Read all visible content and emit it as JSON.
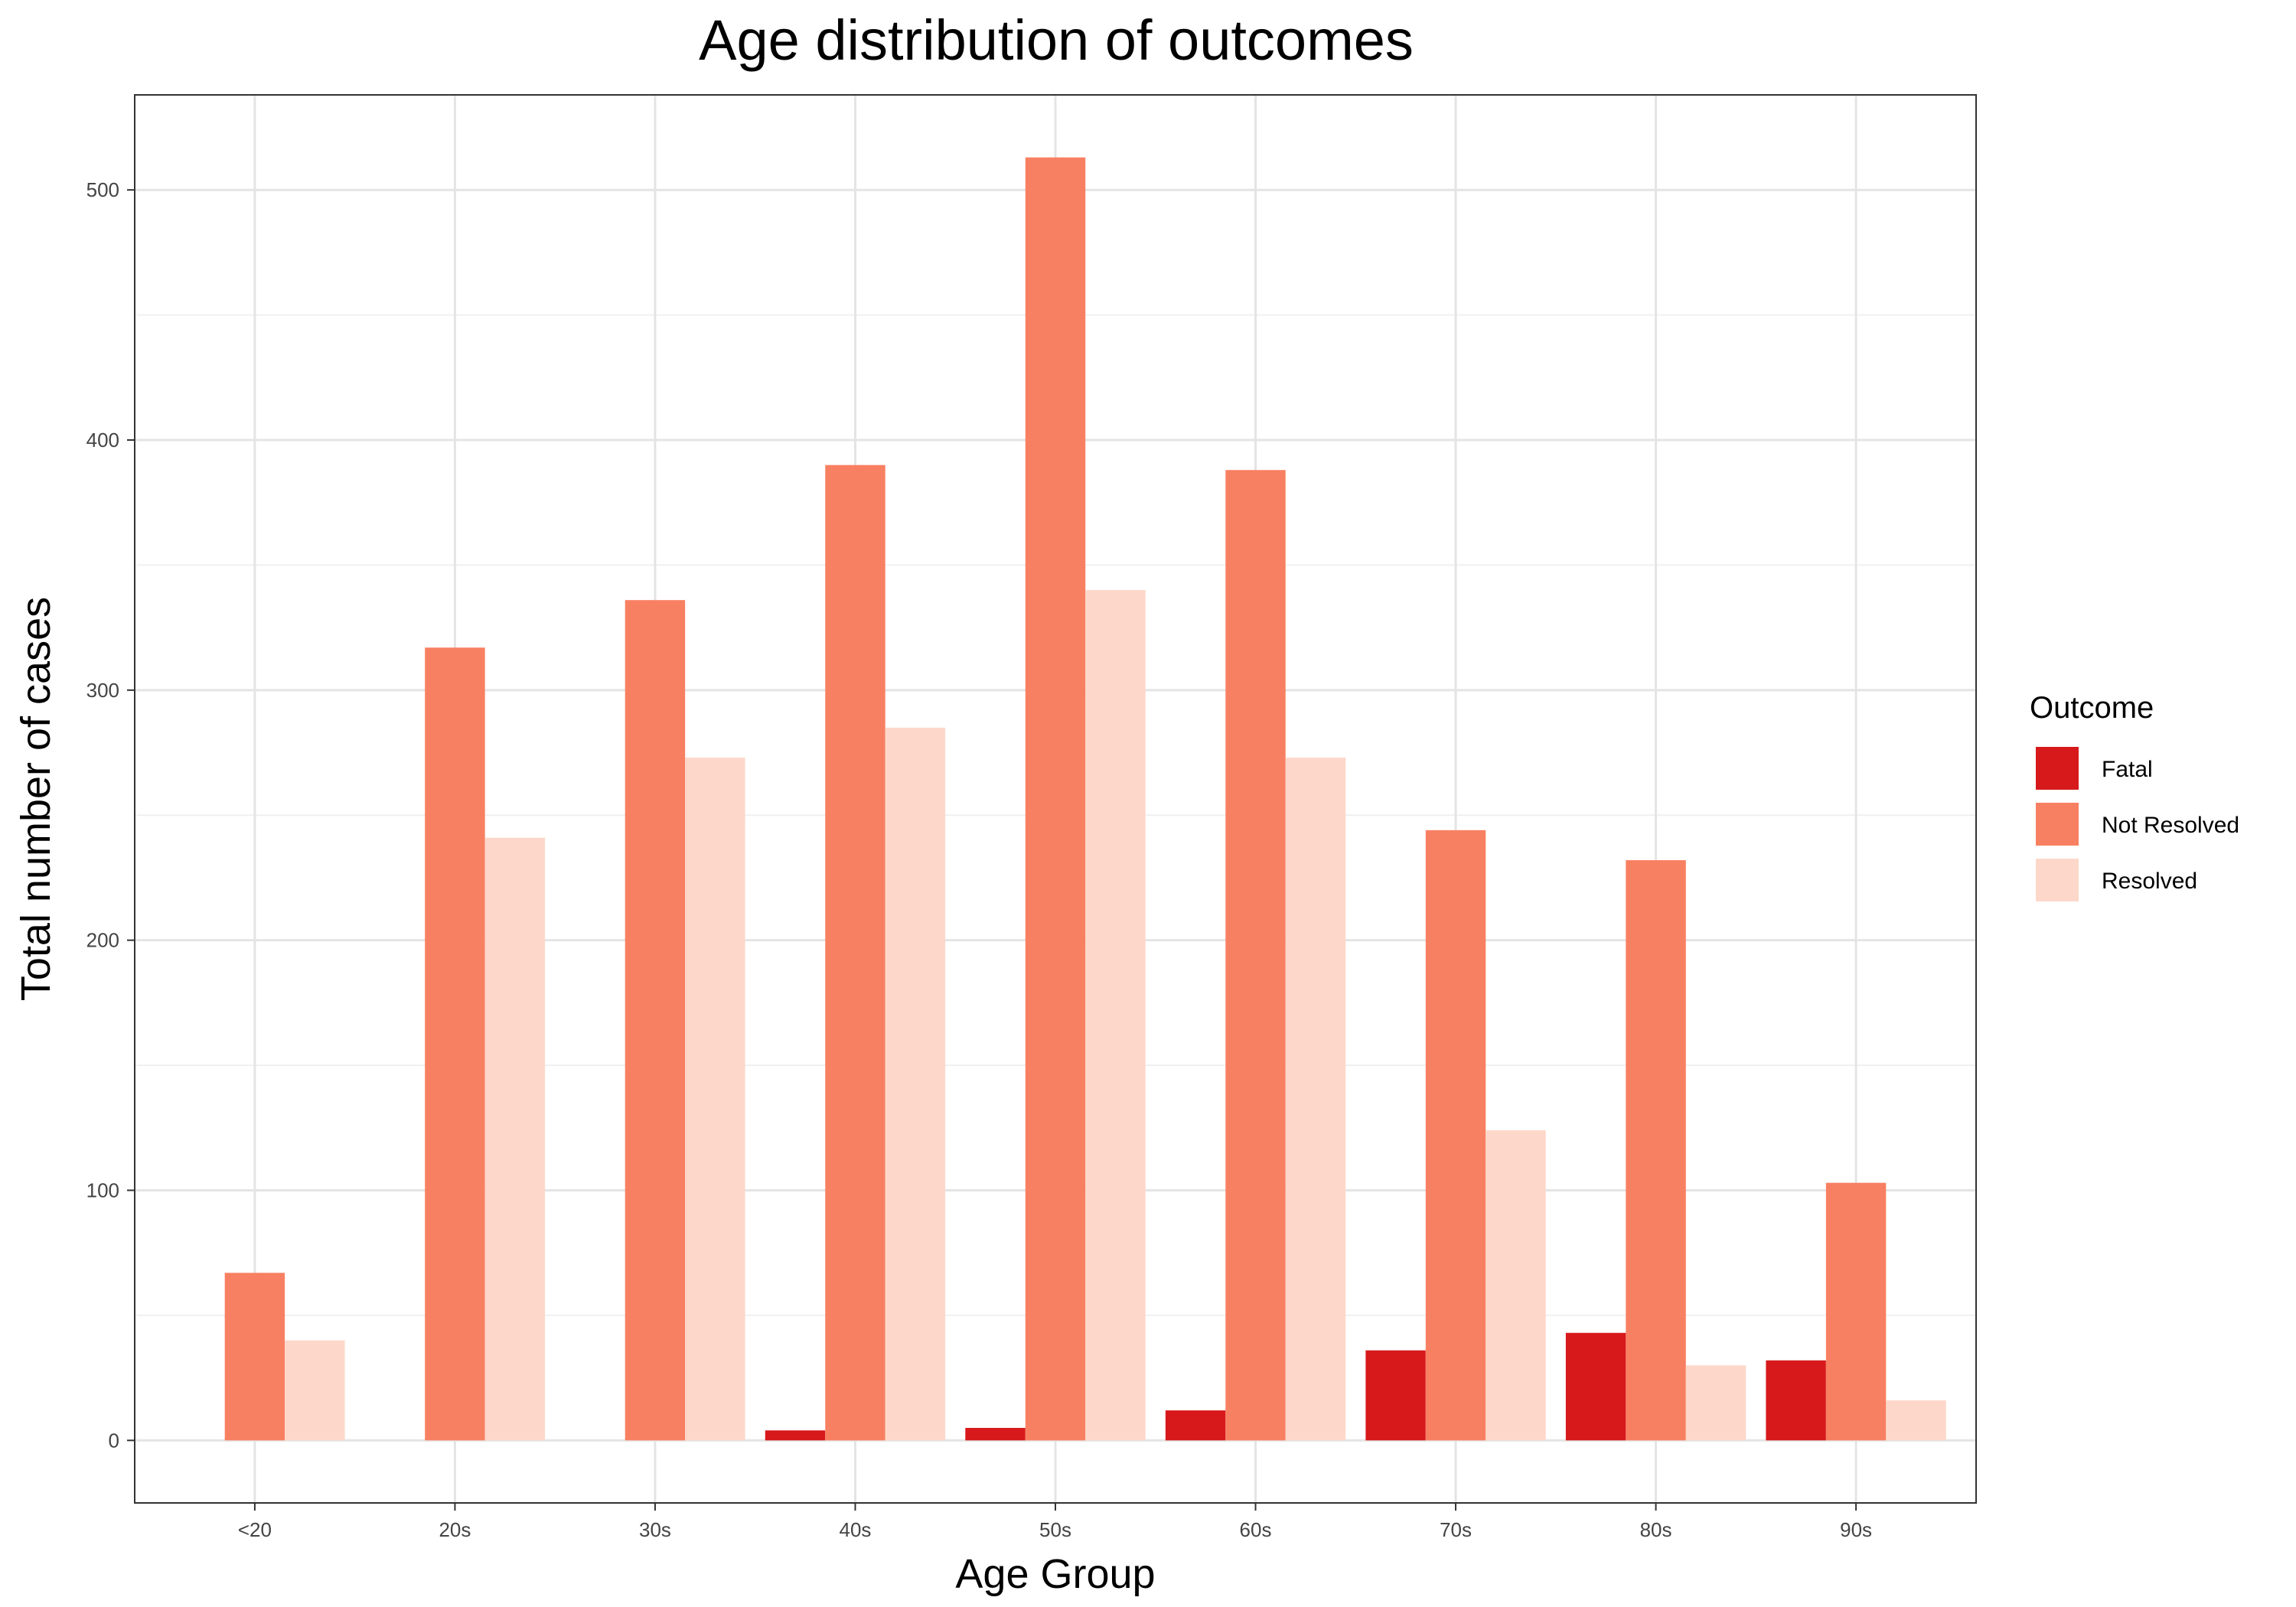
{
  "chart_data": {
    "type": "bar",
    "title": "Age distribution of outcomes",
    "xlabel": "Age Group",
    "ylabel": "Total number of cases",
    "categories": [
      "<20",
      "20s",
      "30s",
      "40s",
      "50s",
      "60s",
      "70s",
      "80s",
      "90s"
    ],
    "series": [
      {
        "name": "Fatal",
        "color": "#d7191c",
        "values": [
          0,
          0,
          0,
          4,
          5,
          12,
          36,
          43,
          32
        ]
      },
      {
        "name": "Not Resolved",
        "color": "#f88062",
        "values": [
          67,
          317,
          336,
          390,
          513,
          388,
          244,
          232,
          103
        ]
      },
      {
        "name": "Resolved",
        "color": "#fdd8ca",
        "values": [
          40,
          241,
          273,
          285,
          340,
          273,
          124,
          30,
          16
        ]
      }
    ],
    "ylim": [
      -25,
      538
    ],
    "yticks": [
      0,
      100,
      200,
      300,
      400,
      500
    ],
    "grid": true,
    "legend": {
      "title": "Outcome",
      "position": "right"
    }
  }
}
